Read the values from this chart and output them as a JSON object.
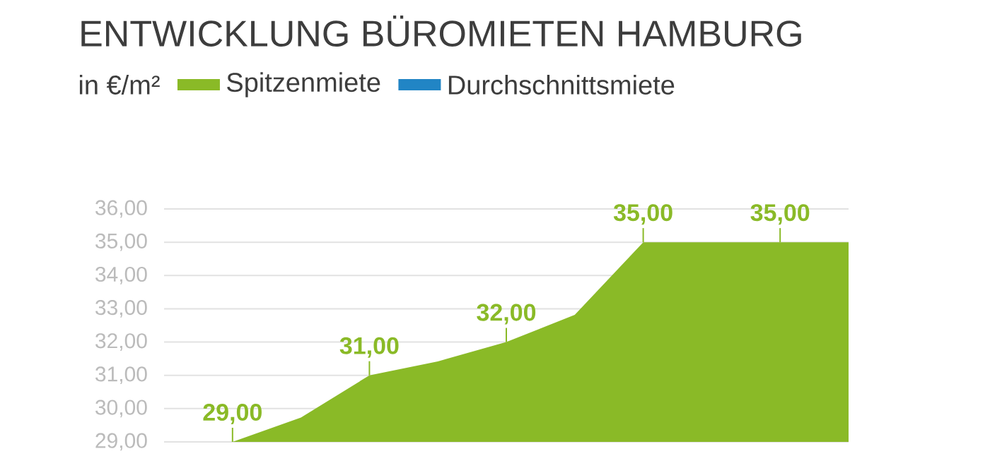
{
  "chart_data": {
    "type": "area",
    "title": "ENTWICKLUNG BÜROMIETEN HAMBURG",
    "subtitle": "in €/m²",
    "categories": [
      null,
      null,
      null,
      null,
      null,
      null,
      null,
      null,
      null,
      null
    ],
    "series": [
      {
        "name": "Spitzenmiete",
        "color": "#8aba27",
        "values": [
          29,
          29.73,
          31,
          31.42,
          32,
          32.82,
          35,
          35,
          35,
          35
        ],
        "value_labels": [
          "29,00",
          null,
          "31,00",
          null,
          "32,00",
          null,
          "35,00",
          null,
          "35,00",
          null
        ]
      },
      {
        "name": "Durchschnittsmiete",
        "color": "#2185c5",
        "values": [
          null,
          null,
          null,
          null,
          null,
          null,
          null,
          null,
          null,
          null
        ]
      }
    ],
    "ylim": [
      29,
      36
    ],
    "yticks": [
      {
        "value": 29,
        "label": "29,00"
      },
      {
        "value": 30,
        "label": "30,00"
      },
      {
        "value": 31,
        "label": "31,00"
      },
      {
        "value": 32,
        "label": "32,00"
      },
      {
        "value": 33,
        "label": "33,00"
      },
      {
        "value": 34,
        "label": "34,00"
      },
      {
        "value": 35,
        "label": "35,00"
      },
      {
        "value": 36,
        "label": "36,00"
      }
    ],
    "grid": "y",
    "legend": "top",
    "tick_labels": "y"
  }
}
